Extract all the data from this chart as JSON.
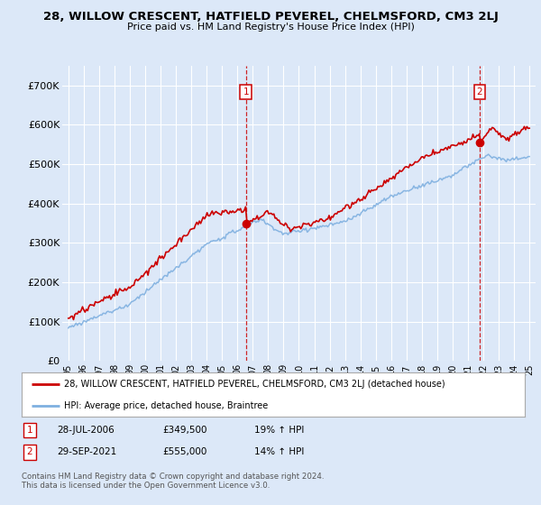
{
  "title": "28, WILLOW CRESCENT, HATFIELD PEVEREL, CHELMSFORD, CM3 2LJ",
  "subtitle": "Price paid vs. HM Land Registry's House Price Index (HPI)",
  "background_color": "#dce8f8",
  "plot_bg_color": "#dce8f8",
  "grid_color": "#ffffff",
  "red_line_color": "#cc0000",
  "blue_line_color": "#7fb0e0",
  "marker1_x": 2006.55,
  "marker1_price": 349500,
  "marker1_date": "28-JUL-2006",
  "marker1_label": "19% ↑ HPI",
  "marker2_x": 2021.75,
  "marker2_price": 555000,
  "marker2_date": "29-SEP-2021",
  "marker2_label": "14% ↑ HPI",
  "legend_label_red": "28, WILLOW CRESCENT, HATFIELD PEVEREL, CHELMSFORD, CM3 2LJ (detached house)",
  "legend_label_blue": "HPI: Average price, detached house, Braintree",
  "footer": "Contains HM Land Registry data © Crown copyright and database right 2024.\nThis data is licensed under the Open Government Licence v3.0.",
  "ylim": [
    0,
    750000
  ],
  "yticks": [
    0,
    100000,
    200000,
    300000,
    400000,
    500000,
    600000,
    700000
  ],
  "ytick_labels": [
    "£0",
    "£100K",
    "£200K",
    "£300K",
    "£400K",
    "£500K",
    "£600K",
    "£700K"
  ],
  "xlim_min": 1994.6,
  "xlim_max": 2025.4,
  "xtick_start": 1995,
  "xtick_end": 2025
}
